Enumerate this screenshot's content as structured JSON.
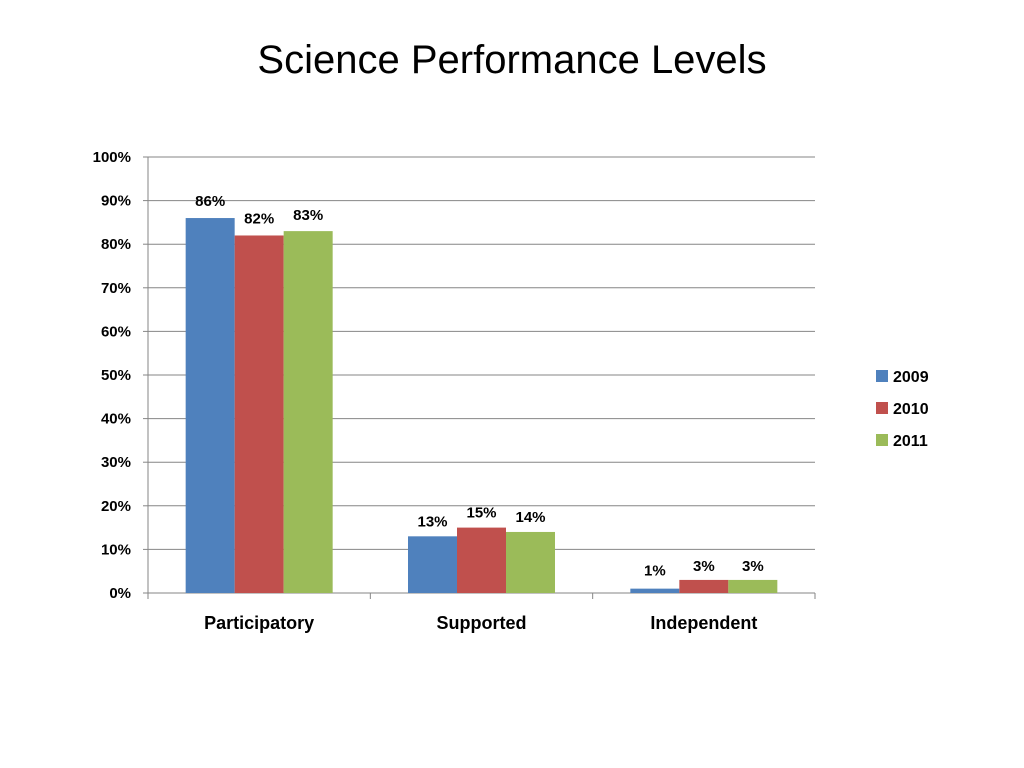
{
  "chart_data": {
    "type": "bar",
    "title": "Science Performance Levels",
    "categories": [
      "Participatory",
      "Supported",
      "Independent"
    ],
    "series": [
      {
        "name": "2009",
        "values": [
          86,
          13,
          1
        ],
        "labels": [
          "86%",
          "13%",
          "1%"
        ],
        "color": "#4F81BD"
      },
      {
        "name": "2010",
        "values": [
          82,
          15,
          3
        ],
        "labels": [
          "82%",
          "15%",
          "3%"
        ],
        "color": "#C0504D"
      },
      {
        "name": "2011",
        "values": [
          83,
          14,
          3
        ],
        "labels": [
          "83%",
          "14%",
          "3%"
        ],
        "color": "#9BBB59"
      }
    ],
    "ylim": [
      0,
      100
    ],
    "yticks": [
      0,
      10,
      20,
      30,
      40,
      50,
      60,
      70,
      80,
      90,
      100
    ],
    "ytick_labels": [
      "0%",
      "10%",
      "20%",
      "30%",
      "40%",
      "50%",
      "60%",
      "70%",
      "80%",
      "90%",
      "100%"
    ],
    "grid": true,
    "legend_position": "right",
    "gridline_color": "#868686",
    "axis_color": "#868686"
  }
}
